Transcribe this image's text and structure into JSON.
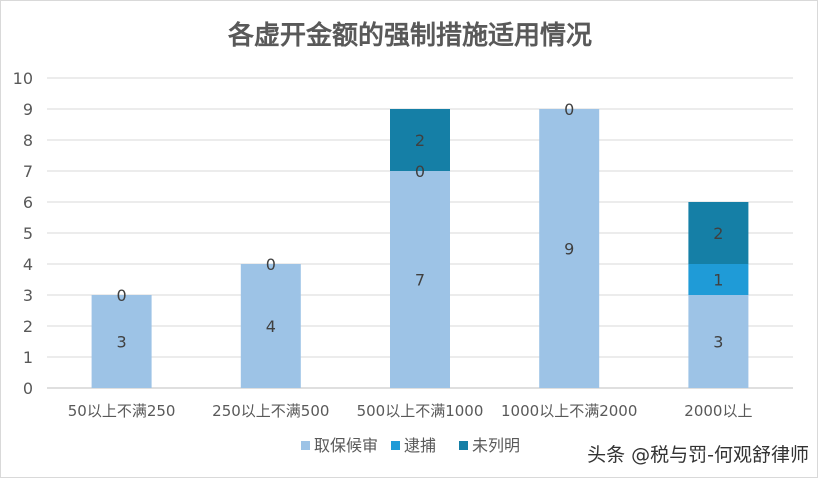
{
  "chart_data": {
    "type": "bar",
    "stacked": true,
    "title": "各虚开金额的强制措施适用情况",
    "xlabel": "",
    "ylabel": "",
    "ylim": [
      0,
      10
    ],
    "yticks": [
      "0",
      "1",
      "2",
      "3",
      "4",
      "5",
      "6",
      "7",
      "8",
      "9",
      "10"
    ],
    "grid": true,
    "legend_position": "bottom",
    "categories": [
      "50以上不满250",
      "250以上不满500",
      "500以上不满1000",
      "1000以上不满2000",
      "2000以上"
    ],
    "series": [
      {
        "name": "取保候审",
        "color": "#9dc3e6",
        "values": [
          3,
          4,
          7,
          9,
          3
        ]
      },
      {
        "name": "逮捕",
        "color": "#1f9bd7",
        "values": [
          0,
          0,
          0,
          null,
          1
        ]
      },
      {
        "name": "未列明",
        "color": "#157fa6",
        "values": [
          null,
          null,
          2,
          0,
          2
        ]
      }
    ],
    "data_labels": [
      [
        "3",
        "4",
        "7",
        "9",
        "3"
      ],
      [
        "0",
        "0",
        "0",
        "",
        "1"
      ],
      [
        "",
        "",
        "2",
        "0",
        "2"
      ]
    ]
  },
  "watermark": "头条 @税与罚-何观舒律师"
}
